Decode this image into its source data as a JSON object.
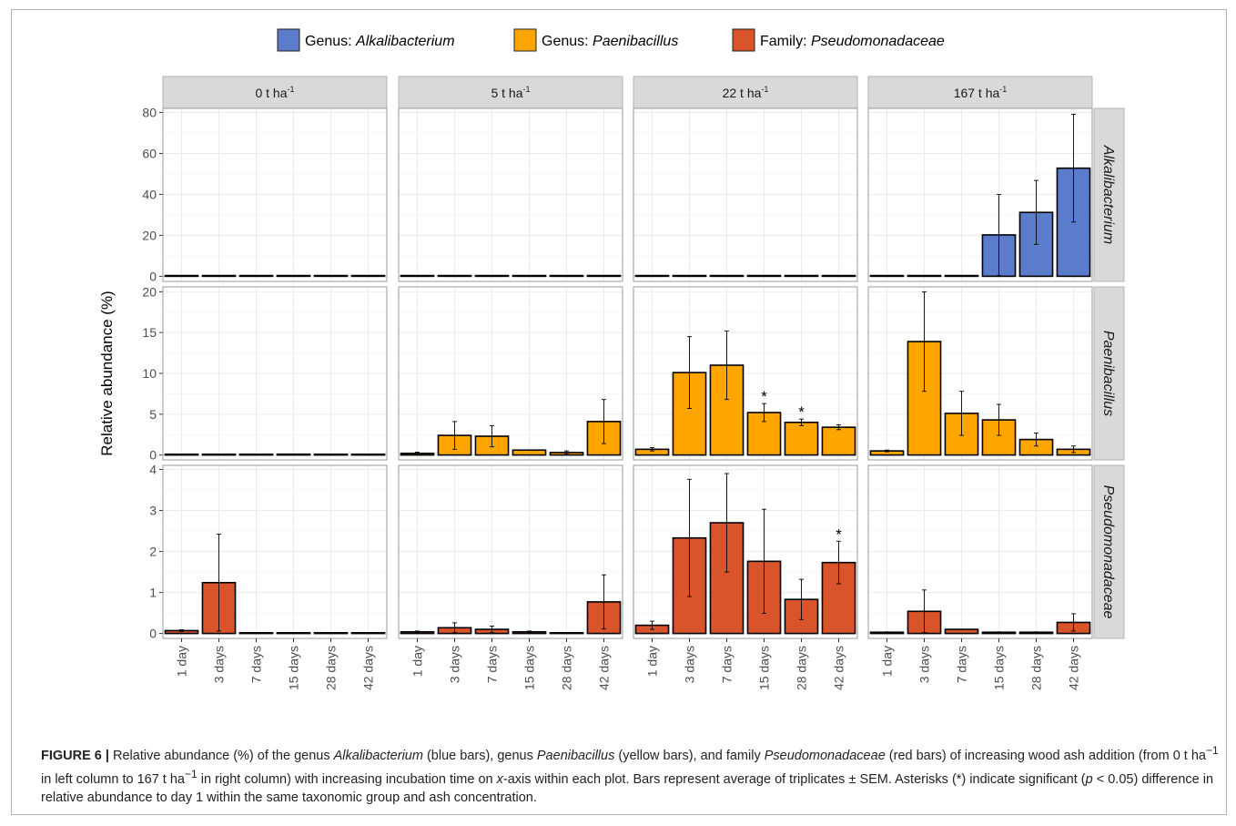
{
  "chart_data": {
    "type": "bar",
    "layout": "faceted grid (rows = taxon, columns = ash dose)",
    "categories": [
      "1 day",
      "3 days",
      "7 days",
      "15 days",
      "28 days",
      "42 days"
    ],
    "columns": [
      {
        "label": "0 t ha",
        "sup": "-1"
      },
      {
        "label": "5 t ha",
        "sup": "-1"
      },
      {
        "label": "22 t ha",
        "sup": "-1"
      },
      {
        "label": "167 t ha",
        "sup": "-1"
      }
    ],
    "ylabel": "Relative abundance (%)",
    "legend": {
      "position": "top-center",
      "entries": [
        {
          "prefix": "Genus: ",
          "name": "Alkalibacterium",
          "color": "#5b7bcb"
        },
        {
          "prefix": "Genus: ",
          "name": "Paenibacillus",
          "color": "#ffa500"
        },
        {
          "prefix": "Family: ",
          "name": "Pseudomonadaceae",
          "color": "#d9542b"
        }
      ]
    },
    "rows": [
      {
        "strip": "Alkalibacterium",
        "color": "#5b7bcb",
        "ylim": [
          -2.5,
          82
        ],
        "yticks": [
          0,
          20,
          40,
          60,
          80
        ],
        "panels": [
          {
            "values": [
              0,
              0,
              0,
              0,
              0,
              0
            ],
            "sem": [
              0,
              0,
              0,
              0,
              0,
              0
            ],
            "sig": [
              false,
              false,
              false,
              false,
              false,
              false
            ]
          },
          {
            "values": [
              0,
              0,
              0,
              0,
              0,
              0
            ],
            "sem": [
              0,
              0,
              0,
              0,
              0,
              0
            ],
            "sig": [
              false,
              false,
              false,
              false,
              false,
              false
            ]
          },
          {
            "values": [
              0,
              0,
              0,
              0.2,
              0,
              0
            ],
            "sem": [
              0,
              0,
              0,
              0,
              0,
              0
            ],
            "sig": [
              false,
              false,
              false,
              false,
              false,
              false
            ]
          },
          {
            "values": [
              0,
              0,
              0,
              20.2,
              31.2,
              52.8
            ],
            "sem": [
              0,
              0,
              0,
              19.8,
              15.6,
              26.3
            ],
            "sig": [
              false,
              false,
              false,
              false,
              false,
              false
            ]
          }
        ]
      },
      {
        "strip": "Paenibacillus",
        "color": "#ffa500",
        "ylim": [
          -0.6,
          20.6
        ],
        "yticks": [
          0,
          5,
          10,
          15,
          20
        ],
        "panels": [
          {
            "values": [
              0.05,
              0.05,
              0.05,
              0.1,
              0.05,
              0
            ],
            "sem": [
              0,
              0,
              0,
              0,
              0,
              0
            ],
            "sig": [
              false,
              false,
              false,
              false,
              false,
              false
            ]
          },
          {
            "values": [
              0.2,
              2.4,
              2.3,
              0.6,
              0.3,
              4.1
            ],
            "sem": [
              0.15,
              1.7,
              1.3,
              0,
              0.2,
              2.7
            ],
            "sig": [
              false,
              false,
              false,
              false,
              false,
              false
            ]
          },
          {
            "values": [
              0.7,
              10.1,
              11.0,
              5.2,
              4.0,
              3.4
            ],
            "sem": [
              0.2,
              4.4,
              4.2,
              1.1,
              0.4,
              0.3
            ],
            "sig": [
              false,
              false,
              false,
              true,
              true,
              false
            ]
          },
          {
            "values": [
              0.5,
              13.9,
              5.1,
              4.3,
              1.9,
              0.7
            ],
            "sem": [
              0.1,
              6.1,
              2.7,
              1.9,
              0.8,
              0.4
            ],
            "sig": [
              false,
              false,
              false,
              false,
              false,
              false
            ]
          }
        ]
      },
      {
        "strip": "Pseudomonadaceae",
        "color": "#d9542b",
        "ylim": [
          -0.12,
          4.1
        ],
        "yticks": [
          0,
          1,
          2,
          3,
          4
        ],
        "panels": [
          {
            "values": [
              0.07,
              1.24,
              0,
              0,
              0,
              0
            ],
            "sem": [
              0.02,
              1.18,
              0,
              0,
              0,
              0
            ],
            "sig": [
              false,
              false,
              false,
              false,
              false,
              false
            ]
          },
          {
            "values": [
              0.04,
              0.14,
              0.1,
              0.04,
              0,
              0.77
            ],
            "sem": [
              0.02,
              0.12,
              0.08,
              0.02,
              0,
              0.66
            ],
            "sig": [
              false,
              false,
              false,
              false,
              false,
              false
            ]
          },
          {
            "values": [
              0.2,
              2.33,
              2.7,
              1.76,
              0.83,
              1.73
            ],
            "sem": [
              0.1,
              1.43,
              1.2,
              1.27,
              0.49,
              0.52
            ],
            "sig": [
              false,
              false,
              false,
              false,
              false,
              true
            ]
          },
          {
            "values": [
              0.03,
              0.54,
              0.1,
              0.03,
              0.03,
              0.27
            ],
            "sem": [
              0.01,
              0.52,
              0,
              0.01,
              0.01,
              0.21
            ],
            "sig": [
              false,
              false,
              false,
              false,
              false,
              false
            ]
          }
        ]
      }
    ],
    "significance_marker": "*",
    "grid": true
  },
  "caption": {
    "label": "FIGURE 6 |",
    "t1": " Relative abundance (%) of the genus ",
    "i1": "Alkalibacterium",
    "t2": " (blue bars), genus ",
    "i2": "Paenibacillus",
    "t3": " (yellow bars), and family ",
    "i3": "Pseudomonadaceae",
    "t4": " (red bars) of increasing wood ash addition (from 0 t ha",
    "s1": "−1",
    "t5": " in left column to 167 t ha",
    "s2": "−1",
    "t6": " in right column) with increasing incubation time on ",
    "i4": "x",
    "t7": "-axis within each plot. Bars represent average of triplicates ± SEM. Asterisks (*) indicate significant (",
    "i5": "p",
    "t8": " < 0.05) difference in relative abundance to day 1 within the same taxonomic group and ash concentration."
  }
}
